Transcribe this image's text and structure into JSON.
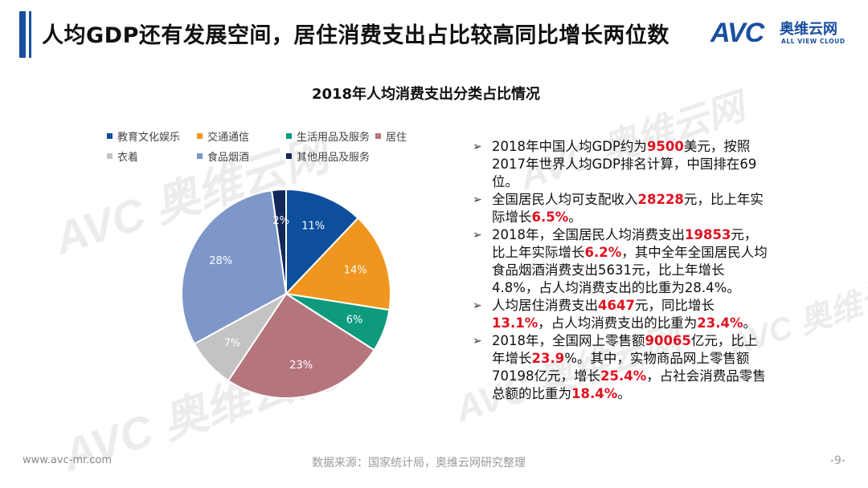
{
  "header": {
    "title": "人均GDP还有发展空间，居住消费支出占比较高同比增长两位数",
    "logo_mark": "AVC",
    "logo_cn": "奥维云网",
    "logo_en": "ALL VIEW CLOUD"
  },
  "watermarks": [
    {
      "mark": "AVC",
      "cn": "奥维云网",
      "en": "ALL VIEW CLOUD"
    }
  ],
  "chart_data": {
    "type": "pie",
    "title": "2018年人均消费支出分类占比情况",
    "legend_position": "top",
    "categories": [
      "教育文化娱乐",
      "交通通信",
      "生活用品及服务",
      "居住",
      "衣着",
      "食品烟酒",
      "其他用品及服务"
    ],
    "values": [
      11,
      14,
      6,
      23,
      7,
      28,
      2
    ],
    "labels": [
      "11%",
      "14%",
      "6%",
      "23%",
      "7%",
      "28%",
      "2%"
    ],
    "colors": [
      "#0e4f9c",
      "#f0961e",
      "#0e9a7d",
      "#b5757c",
      "#c3c3c3",
      "#7e97c8",
      "#12285a"
    ]
  },
  "bullets": [
    [
      {
        "t": "2018年中国人均GDP约为"
      },
      {
        "t": "9500",
        "hl": true
      },
      {
        "t": "美元，按照2017年世界人均GDP排名计算，中国排在69位。"
      }
    ],
    [
      {
        "t": "全国居民人均可支配收入"
      },
      {
        "t": "28228",
        "hl": true
      },
      {
        "t": "元，比上年实际增长"
      },
      {
        "t": "6.5%",
        "hl": true
      },
      {
        "t": "。"
      }
    ],
    [
      {
        "t": "2018年，全国居民人均消费支出"
      },
      {
        "t": "19853",
        "hl": true
      },
      {
        "t": "元，比上年实际增长"
      },
      {
        "t": "6.2%",
        "hl": true
      },
      {
        "t": "，其中全年全国居民人均食品烟酒消费支出5631元，比上年增长4.8%，占人均消费支出的比重为28.4%。"
      }
    ],
    [
      {
        "t": "人均居住消费支出"
      },
      {
        "t": "4647",
        "hl": true
      },
      {
        "t": "元，同比增长"
      },
      {
        "t": "13.1%",
        "hl": true
      },
      {
        "t": "，占人均消费支出的比重为"
      },
      {
        "t": "23.4%",
        "hl": true
      },
      {
        "t": "。"
      }
    ],
    [
      {
        "t": "2018年，全国网上零售额"
      },
      {
        "t": "90065",
        "hl": true
      },
      {
        "t": "亿元，比上年增长"
      },
      {
        "t": "23.9",
        "hl": true
      },
      {
        "t": "%。其中，实物商品网上零售额70198亿元，增长"
      },
      {
        "t": "25.4%",
        "hl": true
      },
      {
        "t": "，占社会消费品零售总额的比重为"
      },
      {
        "t": "18.4%",
        "hl": true
      },
      {
        "t": "。"
      }
    ]
  ],
  "footer": {
    "url": "www.avc-mr.com",
    "source": "数据来源：国家统计局，奥维云网研究整理",
    "page": "-9-"
  }
}
